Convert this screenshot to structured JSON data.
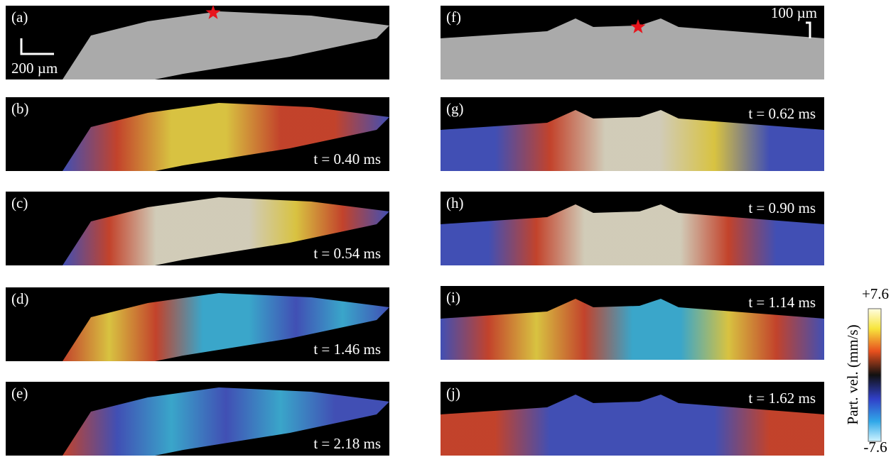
{
  "panels": [
    {
      "label": "(a)",
      "scale_bar": "200 µm"
    },
    {
      "label": "(b)",
      "time": "t = 0.40 ms"
    },
    {
      "label": "(c)",
      "time": "t = 0.54 ms"
    },
    {
      "label": "(d)",
      "time": "t = 1.46 ms"
    },
    {
      "label": "(e)",
      "time": "t = 2.18 ms"
    },
    {
      "label": "(f)",
      "scale_bar": "100 µm"
    },
    {
      "label": "(g)",
      "time": "t = 0.62 ms"
    },
    {
      "label": "(h)",
      "time": "t = 0.90 ms"
    },
    {
      "label": "(i)",
      "time": "t =  1.14 ms"
    },
    {
      "label": "(j)",
      "time": "t = 1.62 ms"
    }
  ],
  "colorbar": {
    "max": "+7.6",
    "min": "-7.6",
    "label": "Part. vel. (mm/s)"
  }
}
